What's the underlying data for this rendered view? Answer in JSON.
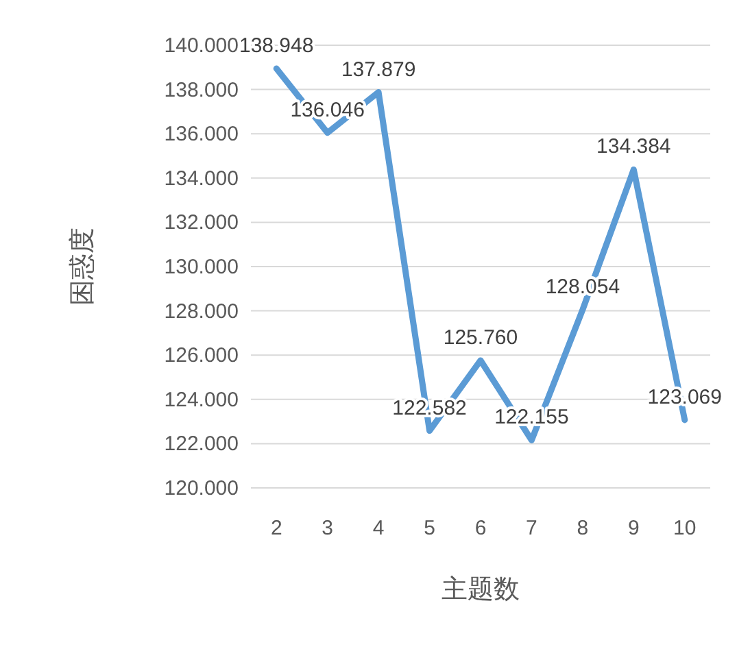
{
  "chart_data": {
    "type": "line",
    "xlabel": "主题数",
    "ylabel": "困惑度",
    "categories": [
      "2",
      "3",
      "4",
      "5",
      "6",
      "7",
      "8",
      "9",
      "10"
    ],
    "series": [
      {
        "color": "#5b9bd5",
        "values": [
          138.948,
          136.046,
          137.879,
          122.582,
          125.76,
          122.155,
          128.054,
          134.384,
          123.069
        ],
        "value_labels": [
          "138.948",
          "136.046",
          "137.879",
          "122.582",
          "125.760",
          "122.155",
          "128.054",
          "134.384",
          "123.069"
        ]
      }
    ],
    "ylim": [
      120,
      140
    ],
    "yticks": [
      {
        "value": 120,
        "label": "120.000"
      },
      {
        "value": 122,
        "label": "122.000"
      },
      {
        "value": 124,
        "label": "124.000"
      },
      {
        "value": 126,
        "label": "126.000"
      },
      {
        "value": 128,
        "label": "128.000"
      },
      {
        "value": 130,
        "label": "130.000"
      },
      {
        "value": 132,
        "label": "132.000"
      },
      {
        "value": 134,
        "label": "134.000"
      },
      {
        "value": 136,
        "label": "136.000"
      },
      {
        "value": 138,
        "label": "138.000"
      },
      {
        "value": 140,
        "label": "140.000"
      }
    ],
    "grid": "y",
    "marker": "none",
    "line_style": "solid"
  }
}
